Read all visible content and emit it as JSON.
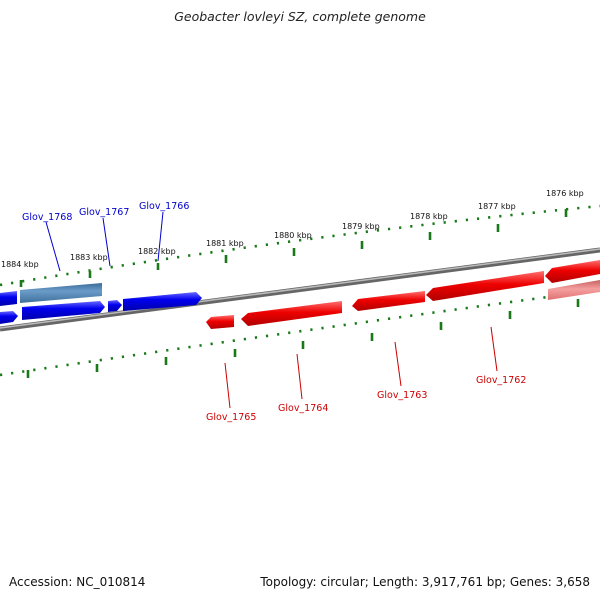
{
  "title": "Geobacter lovleyi SZ, complete genome",
  "footer": {
    "accession": "Accession: NC_010814",
    "summary": "Topology: circular; Length: 3,917,761 bp; Genes: 3,658"
  },
  "ticks": [
    "1884 kbp",
    "1883 kbp",
    "1882 kbp",
    "1881 kbp",
    "1880 kbp",
    "1879 kbp",
    "1878 kbp",
    "1877 kbp",
    "1876 kbp"
  ],
  "genes_forward": [
    "Glov_1768",
    "Glov_1767",
    "Glov_1766"
  ],
  "genes_reverse": [
    "Glov_1765",
    "Glov_1764",
    "Glov_1763",
    "Glov_1762"
  ],
  "colors": {
    "forward": "#0000ee",
    "forward_pale": "#4a7fb0",
    "reverse": "#ee0000",
    "reverse_pale": "#f08080",
    "tick": "#1a7a1a",
    "backbone": "#808080"
  }
}
